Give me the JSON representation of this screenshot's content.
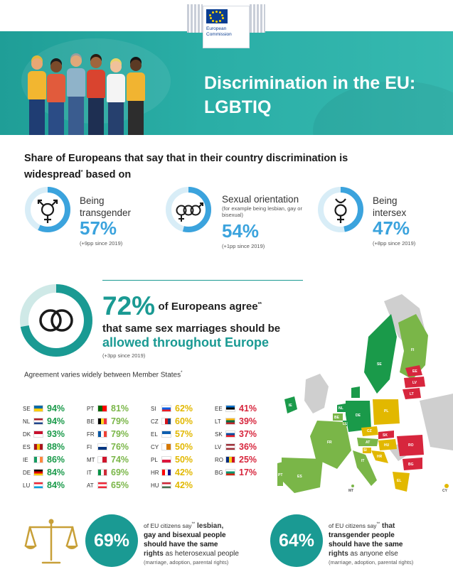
{
  "header": {
    "logo_line1": "European",
    "logo_line2": "Commission",
    "title_line1": "Discrimination in the EU:",
    "title_line2": "LGBTIQ"
  },
  "intro": {
    "title_part1": "Share of Europeans that say that in their country discrimination is widespread",
    "title_sup": "*",
    "title_part2": " based on"
  },
  "stats": [
    {
      "label_line1": "Being",
      "label_line2": "transgender",
      "sub": "",
      "percent": "57%",
      "fill": 0.57,
      "note": "(+9pp since 2019)",
      "icon": "transgender-symbol-icon"
    },
    {
      "label_line1": "Sexual orientation",
      "label_line2": "",
      "sub": "(for example being lesbian, gay or bisexual)",
      "percent": "54%",
      "fill": 0.54,
      "note": "(+1pp since 2019)",
      "icon": "sexual-orientation-symbols-icon"
    },
    {
      "label_line1": "Being",
      "label_line2": "intersex",
      "sub": "",
      "percent": "47%",
      "fill": 0.47,
      "note": "(+8pp since 2019)",
      "icon": "intersex-symbol-icon"
    }
  ],
  "marriage": {
    "percent": "72%",
    "fill": 0.72,
    "text1": "of Europeans agree",
    "text1_sup": "**",
    "text2": "that same sex marriages should be",
    "text3": "allowed throughout Europe",
    "note": "(+3pp since 2019)",
    "varies": "Agreement varies widely between Member States",
    "varies_sup": "*"
  },
  "countries": {
    "col1": [
      {
        "code": "SE",
        "value": "94%",
        "flag": [
          "#006aa7",
          "#fecc00"
        ],
        "color": "#1a9a4a"
      },
      {
        "code": "NL",
        "value": "94%",
        "flag": [
          "#ae1c28",
          "#ffffff",
          "#21468b"
        ],
        "color": "#1a9a4a"
      },
      {
        "code": "DK",
        "value": "93%",
        "flag": [
          "#c8102e",
          "#ffffff"
        ],
        "color": "#1a9a4a"
      },
      {
        "code": "ES",
        "value": "88%",
        "flag": [
          "#aa151b",
          "#f1bf00",
          "#aa151b"
        ],
        "color": "#1a9a4a"
      },
      {
        "code": "IE",
        "value": "86%",
        "flag": [
          "#169b62",
          "#ffffff",
          "#ff883e"
        ],
        "color": "#1a9a4a"
      },
      {
        "code": "DE",
        "value": "84%",
        "flag": [
          "#000000",
          "#dd0000",
          "#ffce00"
        ],
        "color": "#1a9a4a"
      },
      {
        "code": "LU",
        "value": "84%",
        "flag": [
          "#ed2939",
          "#ffffff",
          "#00a1de"
        ],
        "color": "#1a9a4a"
      }
    ],
    "col2": [
      {
        "code": "PT",
        "value": "81%",
        "flag": [
          "#006600",
          "#ff0000"
        ],
        "color": "#7ab648"
      },
      {
        "code": "BE",
        "value": "79%",
        "flag": [
          "#000000",
          "#fdda24",
          "#ef3340"
        ],
        "color": "#7ab648"
      },
      {
        "code": "FR",
        "value": "79%",
        "flag": [
          "#0055a4",
          "#ffffff",
          "#ef4135"
        ],
        "color": "#7ab648"
      },
      {
        "code": "FI",
        "value": "76%",
        "flag": [
          "#ffffff",
          "#003580"
        ],
        "color": "#7ab648"
      },
      {
        "code": "MT",
        "value": "74%",
        "flag": [
          "#ffffff",
          "#cf142b"
        ],
        "color": "#7ab648"
      },
      {
        "code": "IT",
        "value": "69%",
        "flag": [
          "#009246",
          "#ffffff",
          "#ce2b37"
        ],
        "color": "#7ab648"
      },
      {
        "code": "AT",
        "value": "65%",
        "flag": [
          "#ed2939",
          "#ffffff",
          "#ed2939"
        ],
        "color": "#7ab648"
      }
    ],
    "col3": [
      {
        "code": "SI",
        "value": "62%",
        "flag": [
          "#ffffff",
          "#005ce5",
          "#ed1c24"
        ],
        "color": "#e2b800"
      },
      {
        "code": "CZ",
        "value": "60%",
        "flag": [
          "#ffffff",
          "#d7141a",
          "#11457e"
        ],
        "color": "#e2b800"
      },
      {
        "code": "EL",
        "value": "57%",
        "flag": [
          "#0d5eaf",
          "#ffffff"
        ],
        "color": "#e2b800"
      },
      {
        "code": "CY",
        "value": "50%",
        "flag": [
          "#ffffff",
          "#d57800"
        ],
        "color": "#e2b800"
      },
      {
        "code": "PL",
        "value": "50%",
        "flag": [
          "#ffffff",
          "#dc143c"
        ],
        "color": "#e2b800"
      },
      {
        "code": "HR",
        "value": "42%",
        "flag": [
          "#ff0000",
          "#ffffff",
          "#171796"
        ],
        "color": "#e2b800"
      },
      {
        "code": "HU",
        "value": "42%",
        "flag": [
          "#ce2939",
          "#ffffff",
          "#477050"
        ],
        "color": "#e2b800"
      }
    ],
    "col4": [
      {
        "code": "EE",
        "value": "41%",
        "flag": [
          "#0072ce",
          "#000000",
          "#ffffff"
        ],
        "color": "#d7263d"
      },
      {
        "code": "LT",
        "value": "39%",
        "flag": [
          "#fdb913",
          "#006a44",
          "#c1272d"
        ],
        "color": "#d7263d"
      },
      {
        "code": "SK",
        "value": "37%",
        "flag": [
          "#ffffff",
          "#0b4ea2",
          "#ee1c25"
        ],
        "color": "#d7263d"
      },
      {
        "code": "LV",
        "value": "36%",
        "flag": [
          "#9e3039",
          "#ffffff",
          "#9e3039"
        ],
        "color": "#d7263d"
      },
      {
        "code": "RO",
        "value": "25%",
        "flag": [
          "#002b7f",
          "#fcd116",
          "#ce1126"
        ],
        "color": "#d7263d"
      },
      {
        "code": "BG",
        "value": "17%",
        "flag": [
          "#ffffff",
          "#00966e",
          "#d62612"
        ],
        "color": "#d7263d"
      }
    ]
  },
  "map_labels": [
    "FI",
    "SE",
    "EE",
    "LV",
    "LT",
    "IE",
    "NL",
    "DE",
    "PL",
    "BE",
    "LU",
    "CZ",
    "SK",
    "AT",
    "FR",
    "SI",
    "HU",
    "HR",
    "RO",
    "IT",
    "BG",
    "PT",
    "ES",
    "EL",
    "MT",
    "CY"
  ],
  "bottom": [
    {
      "percent": "69%",
      "pre": "of EU citizens say",
      "pre_sup": "**",
      "bold_after": " lesbian,",
      "bold1": "gay and bisexual people",
      "bold2": "should have the same",
      "bold3": "rights",
      "rest": " as heterosexual people",
      "small": "(marriage, adoption, parental rights)"
    },
    {
      "percent": "64%",
      "pre": "of EU citizens say",
      "pre_sup": "**",
      "bold_after": " that",
      "bold1": "transgender people",
      "bold2": "should have the same",
      "bold3": "rights",
      "rest": " as anyone else",
      "small": "(marriage, adoption, parental rights)"
    }
  ],
  "colors": {
    "teal": "#1a9a93",
    "blue": "#3ba3dd",
    "dark_green": "#1a9a4a",
    "light_green": "#7ab648",
    "yellow": "#e2b800",
    "red": "#d7263d"
  }
}
